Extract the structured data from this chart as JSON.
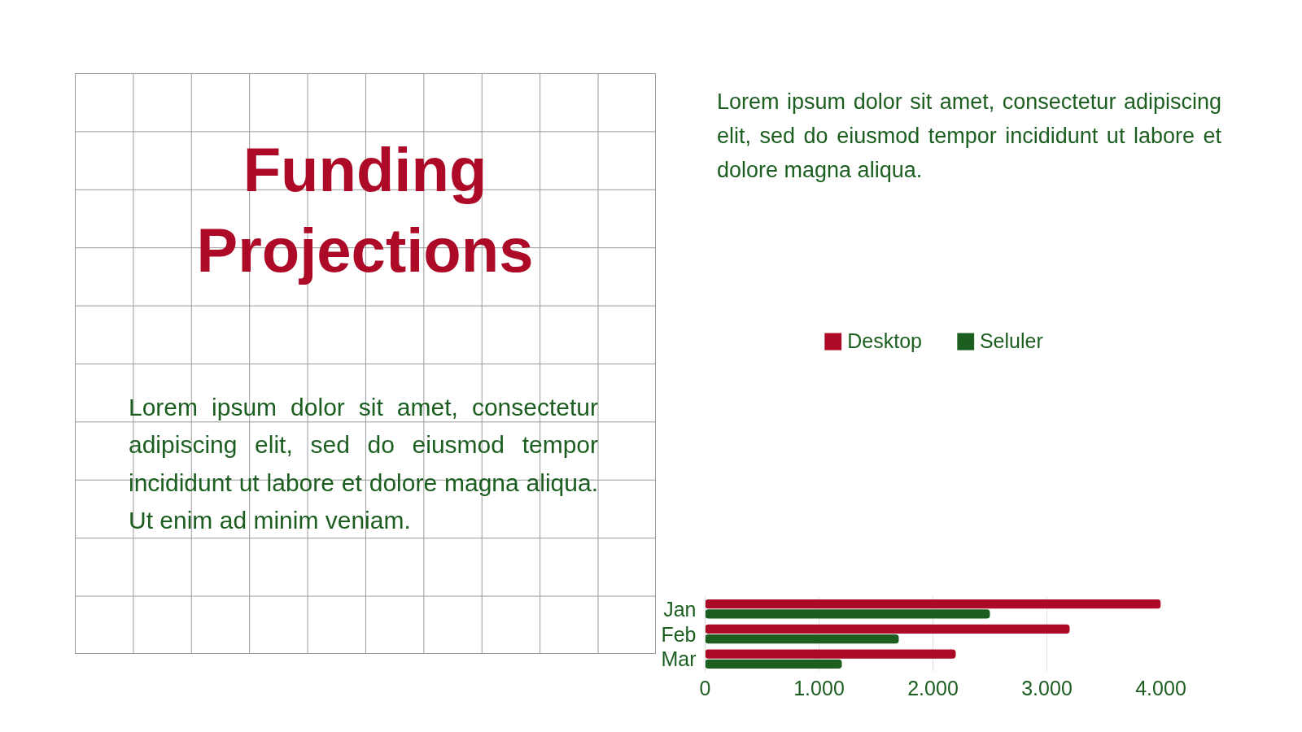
{
  "chart_data": {
    "type": "bar",
    "orientation": "horizontal",
    "title": "Funding Projections",
    "annotations": [
      "Lorem ipsum dolor sit amet, consectetur adipiscing elit, sed do eiusmod tempor incididunt ut labore et dolore magna aliqua. Ut enim ad minim veniam.",
      "Lorem ipsum dolor sit amet, consectetur adipiscing elit, sed do eiusmod tempor incididunt ut labore et dolore magna aliqua."
    ],
    "categories": [
      "Jan",
      "Feb",
      "Mar"
    ],
    "series": [
      {
        "name": "Desktop",
        "color": "#ad0a28",
        "values": [
          4000,
          3200,
          2200
        ]
      },
      {
        "name": "Seluler",
        "color": "#1b5e20",
        "values": [
          2500,
          1700,
          1200
        ]
      }
    ],
    "xlim": [
      0,
      4000
    ],
    "xticks": [
      0,
      {
        "value": 1000,
        "label": "1.000"
      },
      {
        "value": 2000,
        "label": "2.000"
      },
      {
        "value": 3000,
        "label": "3.000"
      },
      {
        "value": 4000,
        "label": "4.000"
      }
    ],
    "grid": "x",
    "legend": "top"
  }
}
